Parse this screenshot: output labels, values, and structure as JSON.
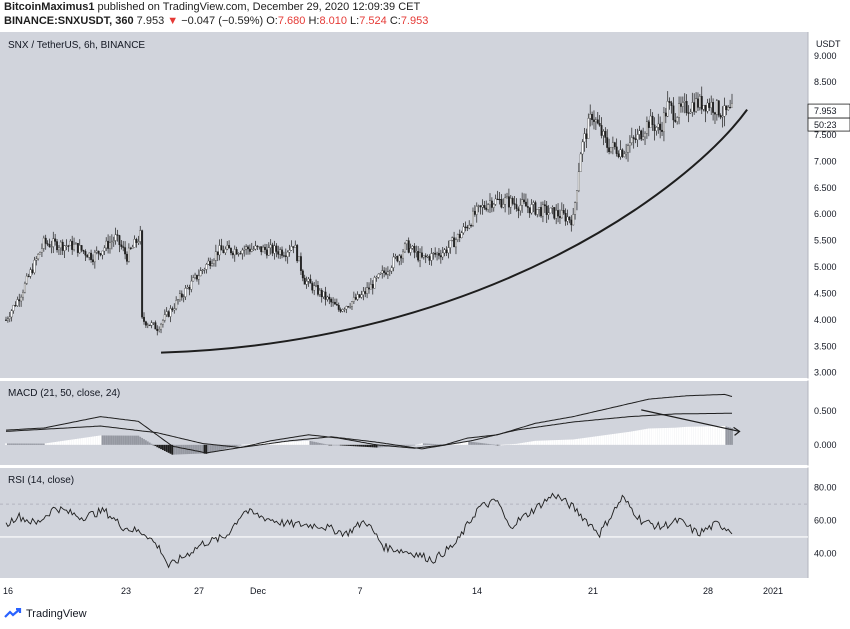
{
  "header": {
    "author": "BitcoinMaximus1",
    "published_text": "published on TradingView.com, December 29, 2020 12:09:39 CET",
    "symbol": "BINANCE:SNXUSDT, 360",
    "last": "7.953",
    "change_arrow": "▼",
    "change": "−0.047 (−0.59%)",
    "o_label": "O:",
    "o_value": "7.680",
    "h_label": "H:",
    "h_value": "8.010",
    "l_label": "L:",
    "l_value": "7.524",
    "c_label": "C:",
    "c_value": "7.953"
  },
  "footer": {
    "brand": "TradingView",
    "logo_icon": "tradingview-logo-icon"
  },
  "colors": {
    "background": "#d1d4dc",
    "up": "#ffffff",
    "down": "#1e1e1e",
    "hist_gray": "#9598a1",
    "line": "#1e1e1e",
    "down_text": "#e53935"
  },
  "chart_data": {
    "type": "candlestick",
    "title": "SNX / TetherUS, 6h, BINANCE",
    "currency_label": "USDT",
    "price_ticks": [
      "9.000",
      "8.500",
      "8.000",
      "7.500",
      "7.000",
      "6.500",
      "6.000",
      "5.500",
      "5.000",
      "4.500",
      "4.000",
      "3.500",
      "3.000"
    ],
    "price_range": [
      2.9,
      9.45
    ],
    "last_price_label": "7.953",
    "countdown_label": "50:23",
    "x_tick_labels": [
      "16",
      "23",
      "27",
      "Dec",
      "7",
      "14",
      "21",
      "28",
      "2021"
    ],
    "close_waypoints": [
      [
        0,
        4.0
      ],
      [
        8,
        4.5
      ],
      [
        20,
        5.45
      ],
      [
        36,
        5.4
      ],
      [
        46,
        5.2
      ],
      [
        58,
        5.55
      ],
      [
        64,
        5.2
      ],
      [
        71,
        5.6
      ],
      [
        72,
        4.0
      ],
      [
        80,
        3.85
      ],
      [
        96,
        4.6
      ],
      [
        112,
        5.3
      ],
      [
        128,
        5.35
      ],
      [
        148,
        5.3
      ],
      [
        152,
        5.45
      ],
      [
        158,
        4.75
      ],
      [
        168,
        4.45
      ],
      [
        176,
        4.2
      ],
      [
        188,
        4.45
      ],
      [
        200,
        4.9
      ],
      [
        212,
        5.4
      ],
      [
        220,
        5.15
      ],
      [
        232,
        5.3
      ],
      [
        240,
        5.6
      ],
      [
        248,
        6.0
      ],
      [
        256,
        6.25
      ],
      [
        264,
        6.25
      ],
      [
        280,
        6.1
      ],
      [
        292,
        6.0
      ],
      [
        300,
        5.9
      ],
      [
        304,
        7.2
      ],
      [
        310,
        7.9
      ],
      [
        318,
        7.3
      ],
      [
        326,
        7.2
      ],
      [
        334,
        7.45
      ],
      [
        340,
        7.75
      ],
      [
        346,
        7.6
      ],
      [
        350,
        8.05
      ],
      [
        354,
        7.9
      ],
      [
        364,
        8.1
      ],
      [
        372,
        8.1
      ],
      [
        380,
        7.9
      ],
      [
        384,
        7.953
      ]
    ],
    "trendline": {
      "from": [
        82,
        3.38
      ],
      "to": [
        392,
        7.98
      ]
    },
    "macd": {
      "title": "MACD (21, 50, close, 24)",
      "ticks": [
        "0.500",
        "0.000"
      ],
      "range": [
        -0.3,
        0.95
      ],
      "macd_waypoints": [
        [
          0,
          0.22
        ],
        [
          20,
          0.25
        ],
        [
          50,
          0.42
        ],
        [
          70,
          0.35
        ],
        [
          88,
          -0.02
        ],
        [
          106,
          -0.12
        ],
        [
          124,
          -0.04
        ],
        [
          140,
          0.06
        ],
        [
          160,
          0.15
        ],
        [
          176,
          0.1
        ],
        [
          196,
          0.0
        ],
        [
          216,
          -0.05
        ],
        [
          232,
          0.0
        ],
        [
          244,
          0.1
        ],
        [
          260,
          0.15
        ],
        [
          280,
          0.32
        ],
        [
          300,
          0.42
        ],
        [
          320,
          0.55
        ],
        [
          340,
          0.68
        ],
        [
          360,
          0.73
        ],
        [
          380,
          0.75
        ],
        [
          384,
          0.72
        ]
      ],
      "signal_waypoints": [
        [
          0,
          0.2
        ],
        [
          50,
          0.28
        ],
        [
          80,
          0.18
        ],
        [
          104,
          0.02
        ],
        [
          124,
          -0.04
        ],
        [
          150,
          0.06
        ],
        [
          172,
          0.12
        ],
        [
          196,
          0.04
        ],
        [
          220,
          -0.06
        ],
        [
          246,
          0.06
        ],
        [
          270,
          0.22
        ],
        [
          300,
          0.34
        ],
        [
          330,
          0.42
        ],
        [
          354,
          0.46
        ],
        [
          384,
          0.47
        ]
      ],
      "divergence_arrow": {
        "from": [
          336,
          0.52
        ],
        "to": [
          388,
          0.2
        ]
      }
    },
    "rsi": {
      "title": "RSI (14, close)",
      "ticks": [
        "80.00",
        "60.00",
        "40.00"
      ],
      "range": [
        25,
        92
      ],
      "band": [
        50,
        70
      ],
      "rsi_waypoints": [
        [
          0,
          57
        ],
        [
          6,
          63
        ],
        [
          16,
          58
        ],
        [
          26,
          68
        ],
        [
          40,
          62
        ],
        [
          52,
          66
        ],
        [
          62,
          56
        ],
        [
          74,
          52
        ],
        [
          82,
          42
        ],
        [
          86,
          32
        ],
        [
          94,
          38
        ],
        [
          104,
          46
        ],
        [
          116,
          50
        ],
        [
          126,
          66
        ],
        [
          136,
          62
        ],
        [
          148,
          58
        ],
        [
          166,
          57
        ],
        [
          180,
          52
        ],
        [
          190,
          60
        ],
        [
          200,
          44
        ],
        [
          216,
          40
        ],
        [
          226,
          36
        ],
        [
          238,
          46
        ],
        [
          250,
          68
        ],
        [
          260,
          72
        ],
        [
          266,
          56
        ],
        [
          276,
          64
        ],
        [
          290,
          76
        ],
        [
          300,
          68
        ],
        [
          314,
          52
        ],
        [
          326,
          74
        ],
        [
          336,
          60
        ],
        [
          346,
          56
        ],
        [
          356,
          60
        ],
        [
          366,
          52
        ],
        [
          376,
          58
        ],
        [
          384,
          54
        ]
      ]
    },
    "bars": 385
  }
}
